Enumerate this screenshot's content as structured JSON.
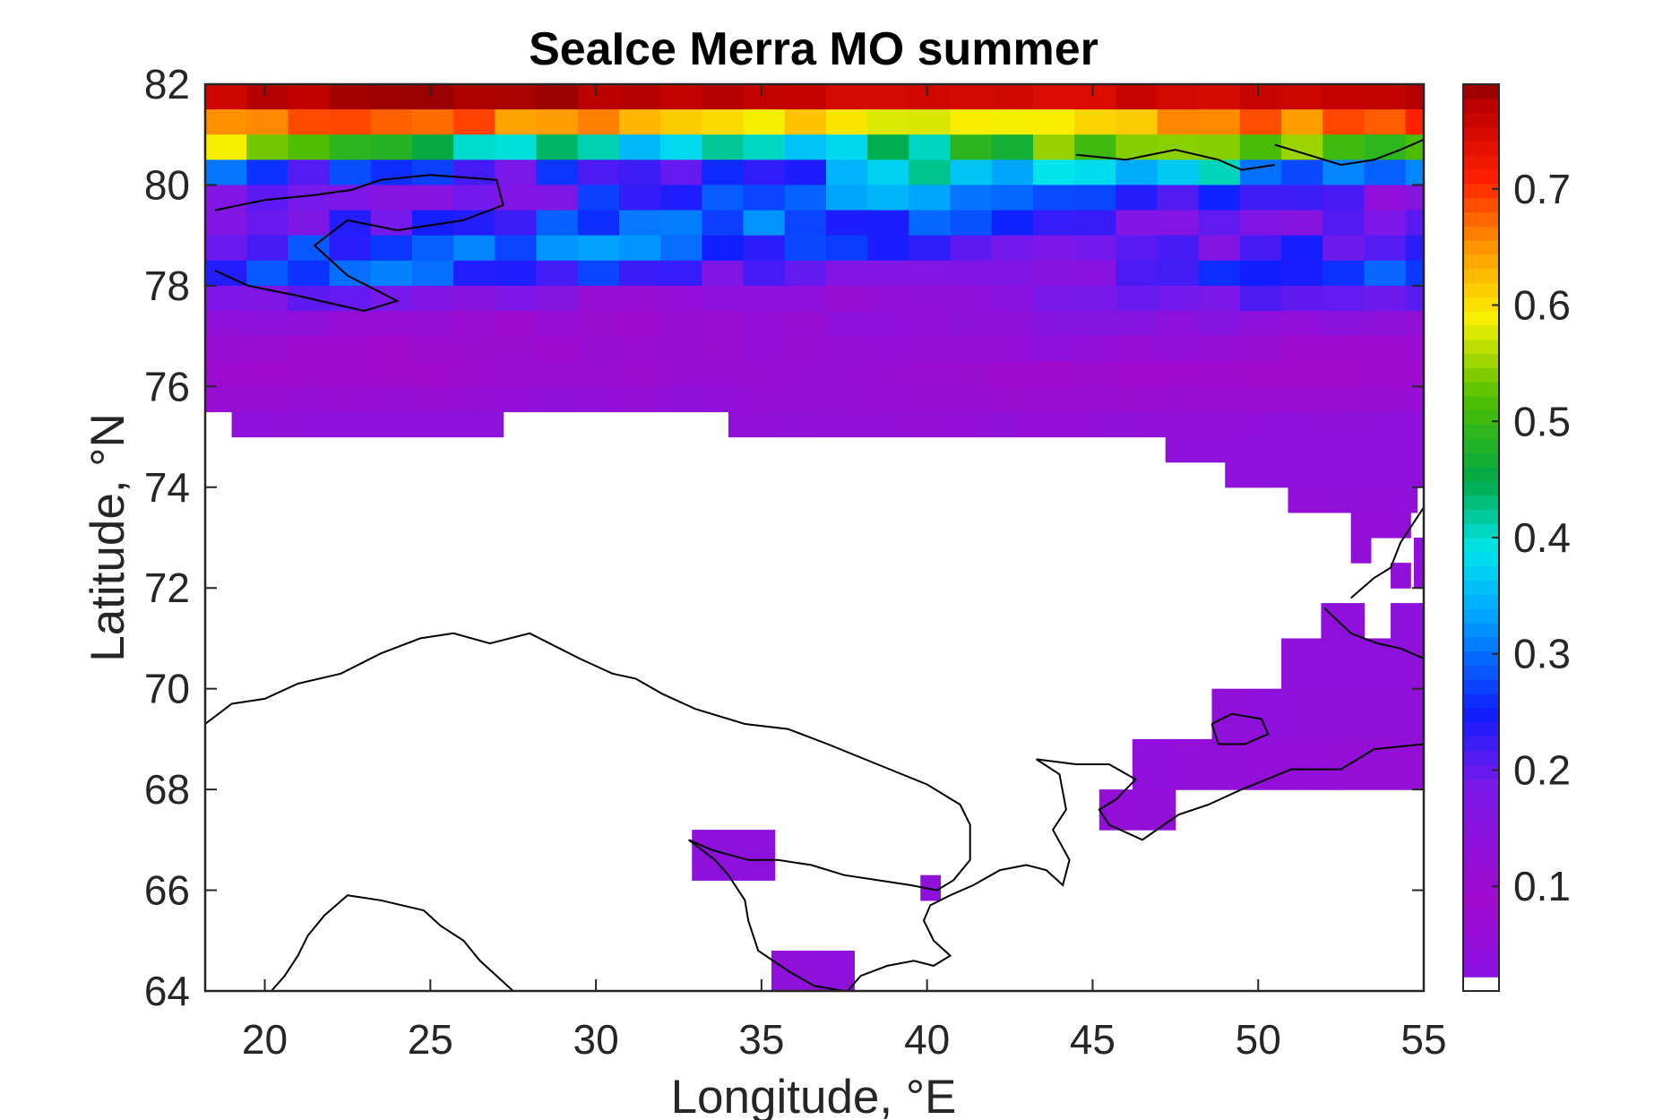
{
  "chart_data": {
    "type": "heatmap",
    "title": "SeaIce Merra MO summer",
    "xlabel": "Longitude, °E",
    "ylabel": "Latitude, °N",
    "xlim": [
      18.2,
      55
    ],
    "ylim": [
      64,
      82
    ],
    "x_ticks": [
      20,
      25,
      30,
      35,
      40,
      45,
      50,
      55
    ],
    "y_ticks": [
      64,
      66,
      68,
      70,
      72,
      74,
      76,
      78,
      80,
      82
    ],
    "colorbar": {
      "ticks": [
        0.1,
        0.2,
        0.3,
        0.4,
        0.5,
        0.6,
        0.7
      ],
      "range": [
        0.01,
        0.79
      ],
      "colormap": "jet-like (purple-blue-cyan-green-yellow-red-darkred)",
      "bottom_swatch": "white"
    },
    "grid": false,
    "cell_size_deg": {
      "lon": 1.25,
      "lat": 0.5
    },
    "field": {
      "description_rows": [
        {
          "lat": [
            81.5,
            82.0
          ],
          "value_range": [
            0.74,
            0.79
          ],
          "lon_range": [
            18.2,
            55
          ]
        },
        {
          "lat": [
            81.0,
            81.5
          ],
          "value_range": [
            0.56,
            0.71
          ],
          "lon_range": [
            18.2,
            55
          ]
        },
        {
          "lat": [
            80.5,
            81.0
          ],
          "value_range": [
            0.33,
            0.6
          ],
          "lon_range": [
            18.2,
            55
          ]
        },
        {
          "lat": [
            80.0,
            80.5
          ],
          "value_range": [
            0.14,
            0.46
          ],
          "lon_range": [
            18.2,
            55
          ]
        },
        {
          "lat": [
            79.5,
            80.0
          ],
          "value_range": [
            0.12,
            0.36
          ],
          "lon_range": [
            18.2,
            55
          ]
        },
        {
          "lat": [
            79.0,
            79.5
          ],
          "value_range": [
            0.14,
            0.33
          ],
          "lon_range": [
            18.2,
            55
          ]
        },
        {
          "lat": [
            78.5,
            79.0
          ],
          "value_range": [
            0.14,
            0.35
          ],
          "lon_range": [
            18.2,
            55
          ]
        },
        {
          "lat": [
            78.0,
            78.5
          ],
          "value_range": [
            0.12,
            0.32
          ],
          "lon_range": [
            18.2,
            55
          ]
        },
        {
          "lat": [
            77.5,
            78.0
          ],
          "value_range": [
            0.1,
            0.22
          ],
          "lon_range": [
            18.2,
            55
          ]
        },
        {
          "lat": [
            77.0,
            77.5
          ],
          "value_range": [
            0.09,
            0.16
          ],
          "lon_range": [
            18.2,
            55
          ]
        },
        {
          "lat": [
            76.5,
            77.0
          ],
          "value_range": [
            0.08,
            0.14
          ],
          "lon_range": [
            18.2,
            55
          ]
        },
        {
          "lat": [
            76.0,
            76.5
          ],
          "value_range": [
            0.08,
            0.12
          ],
          "lon_range": [
            18.2,
            55
          ]
        },
        {
          "lat": [
            75.5,
            76.0
          ],
          "value_range": [
            0.1,
            0.13
          ],
          "lon_range": [
            18.2,
            55
          ]
        },
        {
          "lat": [
            75.0,
            75.5
          ],
          "value_range": [
            0.12,
            0.14
          ],
          "lon_ranges": [
            [
              19.0,
              27.2
            ],
            [
              34.0,
              55
            ]
          ]
        },
        {
          "lat": [
            74.5,
            75.0
          ],
          "value_range": [
            0.12,
            0.14
          ],
          "lon_ranges": [
            [
              47.2,
              55
            ]
          ]
        },
        {
          "lat": [
            74.0,
            74.5
          ],
          "value_range": [
            0.12,
            0.14
          ],
          "lon_ranges": [
            [
              49.0,
              55
            ]
          ]
        },
        {
          "lat": [
            73.5,
            74.0
          ],
          "value_range": [
            0.12,
            0.14
          ],
          "lon_ranges": [
            [
              50.9,
              54.8
            ]
          ]
        },
        {
          "lat": [
            73.0,
            73.5
          ],
          "value_range": [
            0.12,
            0.14
          ],
          "lon_ranges": [
            [
              52.8,
              54.6
            ]
          ]
        },
        {
          "lat": [
            72.5,
            73.0
          ],
          "value_range": [
            0.12,
            0.14
          ],
          "lon_ranges": [
            [
              52.8,
              53.4
            ],
            [
              54.7,
              55
            ]
          ]
        },
        {
          "lat": [
            72.0,
            72.5
          ],
          "value_range": [
            0.12,
            0.14
          ],
          "lon_ranges": [
            [
              54.0,
              54.6
            ],
            [
              54.7,
              55
            ]
          ]
        },
        {
          "lat": [
            71.0,
            71.7
          ],
          "value_range": [
            0.12,
            0.14
          ],
          "lon_ranges": [
            [
              51.9,
              53.2
            ],
            [
              54.0,
              55
            ]
          ]
        },
        {
          "lat": [
            70.0,
            71.0
          ],
          "value_range": [
            0.12,
            0.14
          ],
          "lon_ranges": [
            [
              50.7,
              55
            ]
          ]
        },
        {
          "lat": [
            69.0,
            70.0
          ],
          "value_range": [
            0.12,
            0.14
          ],
          "lon_ranges": [
            [
              48.6,
              55
            ]
          ]
        },
        {
          "lat": [
            68.0,
            69.0
          ],
          "value_range": [
            0.12,
            0.14
          ],
          "lon_ranges": [
            [
              46.2,
              55
            ]
          ]
        },
        {
          "lat": [
            67.2,
            68.0
          ],
          "value_range": [
            0.12,
            0.14
          ],
          "lon_ranges": [
            [
              45.2,
              47.5
            ]
          ]
        },
        {
          "lat": [
            66.2,
            67.2
          ],
          "value_range": [
            0.13,
            0.14
          ],
          "lon_ranges": [
            [
              32.9,
              35.4
            ]
          ]
        },
        {
          "lat": [
            65.8,
            66.3
          ],
          "value_range": [
            0.13,
            0.14
          ],
          "lon_ranges": [
            [
              39.8,
              40.4
            ]
          ]
        },
        {
          "lat": [
            64.0,
            64.8
          ],
          "value_range": [
            0.13,
            0.14
          ],
          "lon_ranges": [
            [
              35.3,
              37.8
            ]
          ]
        }
      ]
    }
  }
}
